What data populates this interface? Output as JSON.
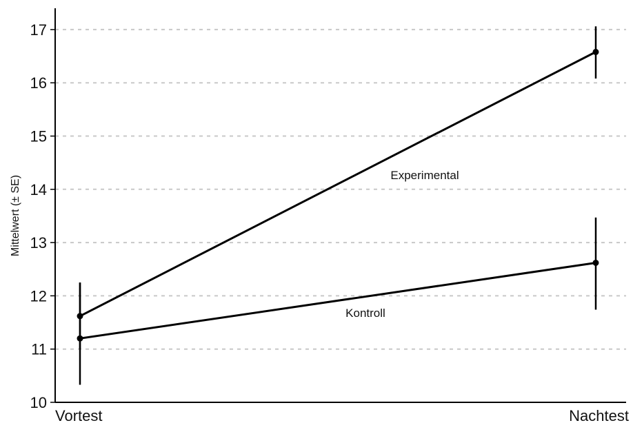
{
  "chart_data": {
    "type": "line",
    "categories": [
      "Vortest",
      "Nachtest"
    ],
    "ylabel": "Mittelwert (± SE)",
    "ylim": [
      10,
      17.4
    ],
    "yticks": [
      10,
      11,
      12,
      13,
      14,
      15,
      16,
      17
    ],
    "grid": "horizontal dashed",
    "series": [
      {
        "name": "Experimental",
        "values": [
          11.62,
          16.58
        ],
        "error_low": [
          11.0,
          16.08
        ],
        "error_high": [
          12.25,
          17.06
        ]
      },
      {
        "name": "Kontroll",
        "values": [
          11.2,
          12.62
        ],
        "error_low": [
          10.33,
          11.74
        ],
        "error_high": [
          12.25,
          13.47
        ]
      }
    ]
  }
}
